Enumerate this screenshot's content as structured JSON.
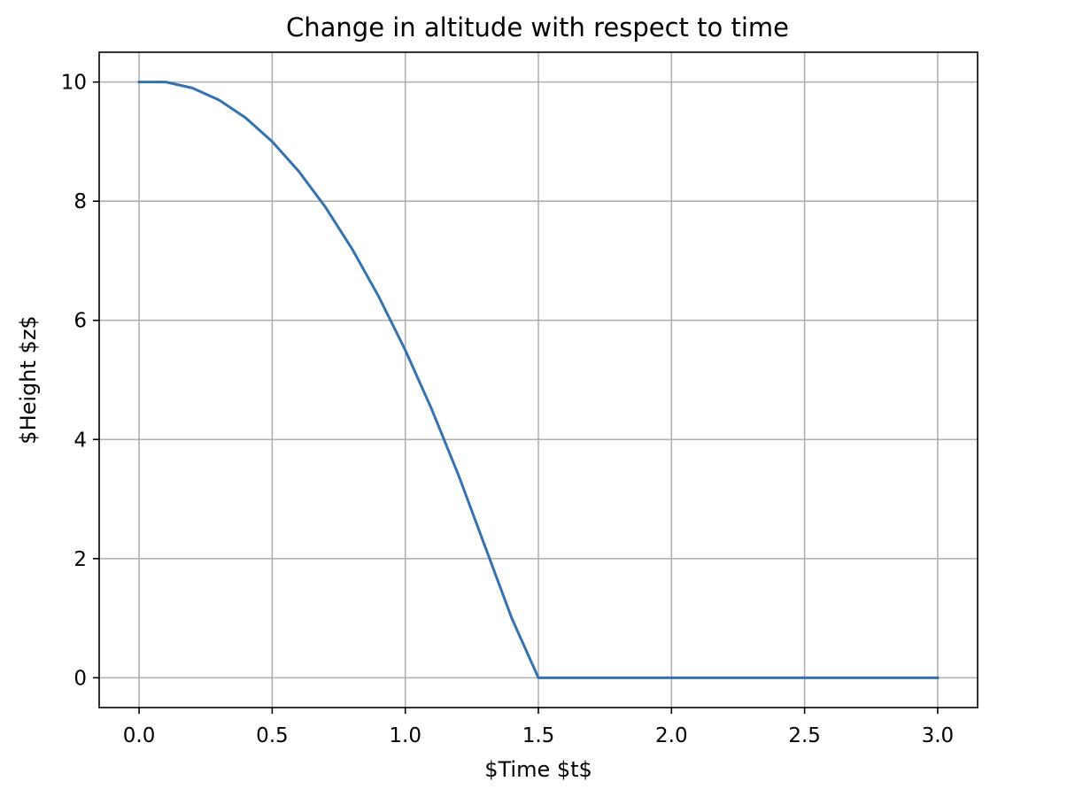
{
  "chart_data": {
    "type": "line",
    "title": "Change in altitude with respect to time",
    "xlabel": "$Time $t$",
    "ylabel": "$Height $z$",
    "xlim": [
      -0.15,
      3.15
    ],
    "ylim": [
      -0.5,
      10.5
    ],
    "xticks": [
      0.0,
      0.5,
      1.0,
      1.5,
      2.0,
      2.5,
      3.0
    ],
    "xtick_labels": [
      "0.0",
      "0.5",
      "1.0",
      "1.5",
      "2.0",
      "2.5",
      "3.0"
    ],
    "yticks": [
      0,
      2,
      4,
      6,
      8,
      10
    ],
    "ytick_labels": [
      "0",
      "2",
      "4",
      "6",
      "8",
      "10"
    ],
    "grid": true,
    "legend": "none",
    "series_color": "#3572b0",
    "series": [
      {
        "x": [
          0.0,
          0.1,
          0.2,
          0.3,
          0.4,
          0.5,
          0.6,
          0.7,
          0.8,
          0.9,
          1.0,
          1.1,
          1.2,
          1.3,
          1.4,
          1.5,
          1.6,
          1.7,
          1.8,
          1.9,
          2.0,
          2.1,
          2.2,
          2.3,
          2.4,
          2.5,
          2.6,
          2.7,
          2.8,
          2.9,
          3.0
        ],
        "values": [
          10.0,
          10.0,
          9.9,
          9.7,
          9.4,
          9.0,
          8.5,
          7.9,
          7.2,
          6.4,
          5.5,
          4.5,
          3.4,
          2.2,
          1.0,
          0.0,
          0.0,
          0.0,
          0.0,
          0.0,
          0.0,
          0.0,
          0.0,
          0.0,
          0.0,
          0.0,
          0.0,
          0.0,
          0.0,
          0.0,
          0.0
        ]
      }
    ]
  }
}
